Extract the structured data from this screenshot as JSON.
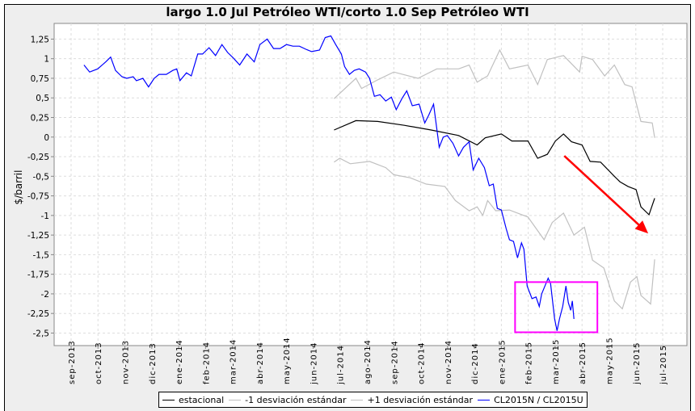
{
  "chart_data": {
    "type": "line",
    "title": "largo 1.0 Jul Petróleo WTI/corto 1.0 Sep Petróleo WTI",
    "xlabel": "",
    "ylabel": "$/barril",
    "x_unit": "months since sep-2013",
    "x_tick_labels": [
      "sep-2013",
      "oct-2013",
      "nov-2013",
      "dic-2013",
      "ene-2014",
      "feb-2014",
      "mar-2014",
      "abr-2014",
      "may-2014",
      "jun-2014",
      "jul-2014",
      "ago-2014",
      "sep-2014",
      "oct-2014",
      "nov-2014",
      "dic-2014",
      "ene-2015",
      "feb-2015",
      "mar-2015",
      "abr-2015",
      "may-2015",
      "jun-2015",
      "jul-2015"
    ],
    "y_ticks": [
      1.25,
      1,
      0.75,
      0.5,
      0.25,
      0,
      -0.25,
      -0.5,
      -0.75,
      -1,
      -1.25,
      -1.5,
      -1.75,
      -2,
      -2.25,
      -2.5
    ],
    "y_tick_labels": [
      "1,25",
      "1",
      "0,75",
      "0,5",
      "0,25",
      "0",
      "-0,25",
      "-0,5",
      "-0,75",
      "-1",
      "-1,25",
      "-1,5",
      "-1,75",
      "-2",
      "-2,25",
      "-2,5"
    ],
    "xlim": [
      -0.63,
      22.9
    ],
    "ylim": [
      -2.66,
      1.45
    ],
    "grid": true,
    "legend_position": "bottom",
    "series": [
      {
        "name": "estacional",
        "color": "#000000",
        "x": [
          9.78,
          10.59,
          11.4,
          12.39,
          13.39,
          14.41,
          15.1,
          15.4,
          16.0,
          16.39,
          16.99,
          17.35,
          17.71,
          18.01,
          18.31,
          18.61,
          19.0,
          19.3,
          19.69,
          20.2,
          20.41,
          20.71,
          21.01,
          21.19,
          21.49,
          21.7
        ],
        "y": [
          0.09,
          0.21,
          0.2,
          0.15,
          0.09,
          0.02,
          -0.1,
          -0.01,
          0.04,
          -0.05,
          -0.05,
          -0.27,
          -0.22,
          -0.05,
          0.04,
          -0.06,
          -0.1,
          -0.31,
          -0.32,
          -0.5,
          -0.57,
          -0.63,
          -0.67,
          -0.89,
          -0.99,
          -0.78
        ]
      },
      {
        "name": "-1 desviación estándar",
        "color": "#c0c0c0",
        "x": [
          9.78,
          9.99,
          10.38,
          11.1,
          11.7,
          12.0,
          12.61,
          13.21,
          13.9,
          14.29,
          14.8,
          15.1,
          15.31,
          15.49,
          15.79,
          16.3,
          16.99,
          17.59,
          17.89,
          18.31,
          18.7,
          19.09,
          19.39,
          19.81,
          20.2,
          20.5,
          20.8,
          21.04,
          21.19,
          21.55,
          21.7
        ],
        "y": [
          -0.32,
          -0.27,
          -0.34,
          -0.31,
          -0.39,
          -0.48,
          -0.52,
          -0.6,
          -0.63,
          -0.81,
          -0.94,
          -0.89,
          -1.0,
          -0.81,
          -0.94,
          -0.93,
          -1.02,
          -1.31,
          -1.09,
          -0.97,
          -1.25,
          -1.15,
          -1.57,
          -1.67,
          -2.09,
          -2.19,
          -1.85,
          -1.78,
          -2.02,
          -2.13,
          -1.56
        ]
      },
      {
        "name": "+1 desviación estándar",
        "color": "#c0c0c0",
        "x": [
          9.78,
          10.59,
          10.8,
          11.4,
          12.0,
          12.9,
          13.6,
          14.41,
          14.8,
          15.1,
          15.49,
          15.94,
          16.3,
          16.99,
          17.35,
          17.71,
          18.31,
          18.91,
          19.0,
          19.39,
          19.84,
          20.2,
          20.59,
          20.86,
          21.19,
          21.61,
          21.7
        ],
        "y": [
          0.49,
          0.75,
          0.62,
          0.73,
          0.83,
          0.75,
          0.87,
          0.87,
          0.92,
          0.7,
          0.78,
          1.11,
          0.87,
          0.92,
          0.67,
          0.99,
          1.04,
          0.83,
          1.03,
          0.99,
          0.78,
          0.92,
          0.67,
          0.64,
          0.2,
          0.18,
          -0.01
        ]
      },
      {
        "name": "CL2015N / CL2015U",
        "color": "#0000ff",
        "x": [
          0.48,
          0.69,
          0.99,
          1.29,
          1.47,
          1.65,
          1.89,
          2.07,
          2.31,
          2.43,
          2.67,
          2.88,
          3.09,
          3.27,
          3.54,
          3.78,
          3.93,
          4.05,
          4.29,
          4.47,
          4.71,
          4.89,
          5.13,
          5.37,
          5.61,
          5.82,
          6.03,
          6.27,
          6.54,
          6.81,
          7.02,
          7.29,
          7.53,
          7.77,
          8.01,
          8.25,
          8.49,
          8.73,
          8.94,
          9.24,
          9.45,
          9.66,
          9.84,
          10.05,
          10.17,
          10.35,
          10.53,
          10.71,
          10.95,
          11.1,
          11.28,
          11.49,
          11.7,
          11.91,
          12.09,
          12.3,
          12.48,
          12.69,
          12.94,
          13.15,
          13.3,
          13.48,
          13.69,
          13.84,
          13.99,
          14.2,
          14.41,
          14.59,
          14.8,
          14.95,
          15.16,
          15.37,
          15.55,
          15.7,
          15.85,
          16.0,
          16.18,
          16.3,
          16.45,
          16.6,
          16.75,
          16.84,
          16.96,
          17.14,
          17.29,
          17.41,
          17.5,
          17.62,
          17.74,
          17.83,
          17.98,
          18.07,
          18.16,
          18.28,
          18.4,
          18.49,
          18.58,
          18.64,
          18.7
        ],
        "y": [
          0.92,
          0.83,
          0.87,
          0.96,
          1.02,
          0.85,
          0.77,
          0.75,
          0.77,
          0.72,
          0.75,
          0.64,
          0.75,
          0.8,
          0.8,
          0.85,
          0.87,
          0.72,
          0.82,
          0.78,
          1.06,
          1.06,
          1.14,
          1.04,
          1.18,
          1.08,
          1.01,
          0.92,
          1.06,
          0.96,
          1.18,
          1.25,
          1.13,
          1.13,
          1.18,
          1.16,
          1.16,
          1.12,
          1.09,
          1.11,
          1.27,
          1.29,
          1.18,
          1.06,
          0.9,
          0.8,
          0.85,
          0.87,
          0.83,
          0.75,
          0.52,
          0.54,
          0.46,
          0.51,
          0.35,
          0.49,
          0.59,
          0.4,
          0.42,
          0.18,
          0.28,
          0.42,
          -0.13,
          0.0,
          0.02,
          -0.08,
          -0.24,
          -0.13,
          -0.06,
          -0.42,
          -0.27,
          -0.39,
          -0.62,
          -0.6,
          -0.91,
          -0.93,
          -1.17,
          -1.31,
          -1.33,
          -1.54,
          -1.35,
          -1.43,
          -1.9,
          -2.06,
          -2.04,
          -2.16,
          -2.0,
          -1.9,
          -1.8,
          -1.87,
          -2.32,
          -2.47,
          -2.32,
          -2.16,
          -1.9,
          -2.11,
          -2.21,
          -2.09,
          -2.32
        ]
      }
    ],
    "annotations": [
      {
        "type": "arrow",
        "color": "#ff0000",
        "from": [
          18.34,
          -0.24
        ],
        "to": [
          21.46,
          -1.23
        ]
      },
      {
        "type": "rect",
        "color": "#ff00ff",
        "x": [
          16.51,
          19.57
        ],
        "y": [
          -2.49,
          -1.85
        ]
      }
    ]
  }
}
